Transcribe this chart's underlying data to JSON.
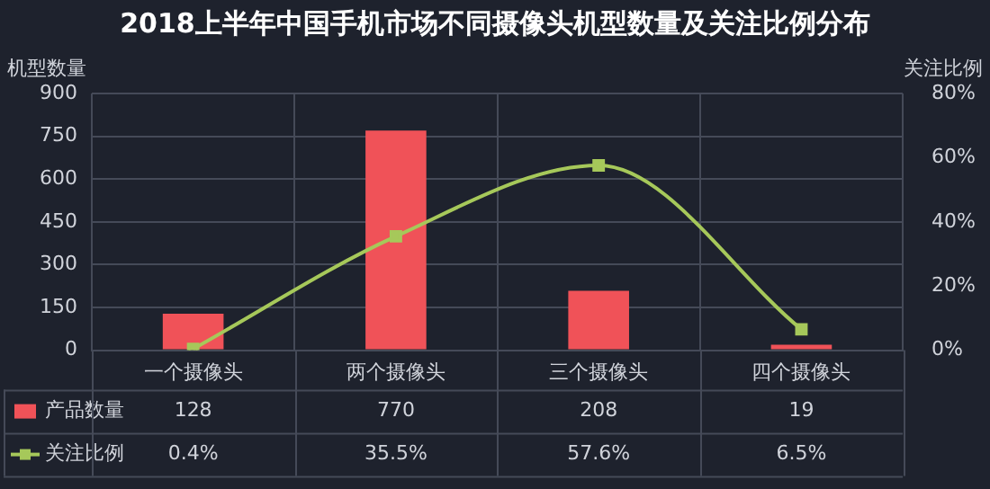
{
  "chart_data": {
    "type": "bar",
    "title": "2018上半年中国手机市场不同摄像头机型数量及关注比例分布",
    "ylabel": "机型数量",
    "y2label": "关注比例",
    "categories": [
      "一个摄像头",
      "两个摄像头",
      "三个摄像头",
      "四个摄像头"
    ],
    "series": [
      {
        "name": "产品数量",
        "color": "#f05258",
        "values": [
          128,
          770,
          208,
          19
        ],
        "value_labels": [
          "128",
          "770",
          "208",
          "19"
        ]
      },
      {
        "name": "关注比例",
        "type": "line",
        "axis": "y2",
        "color": "#a6c85a",
        "values": [
          0.4,
          35.5,
          57.6,
          6.5
        ],
        "value_labels": [
          "0.4%",
          "35.5%",
          "57.6%",
          "6.5%"
        ]
      }
    ],
    "ylim": [
      0,
      900
    ],
    "yticks": [
      0,
      150,
      300,
      450,
      600,
      750,
      900
    ],
    "y2lim": [
      0,
      80
    ],
    "y2ticks": [
      {
        "value": 0,
        "label": "0%"
      },
      {
        "value": 20,
        "label": "20%"
      },
      {
        "value": 40,
        "label": "40%"
      },
      {
        "value": 60,
        "label": "60%"
      },
      {
        "value": 80,
        "label": "80%"
      }
    ],
    "grid": true,
    "legend": "bottom",
    "marker": "square"
  }
}
